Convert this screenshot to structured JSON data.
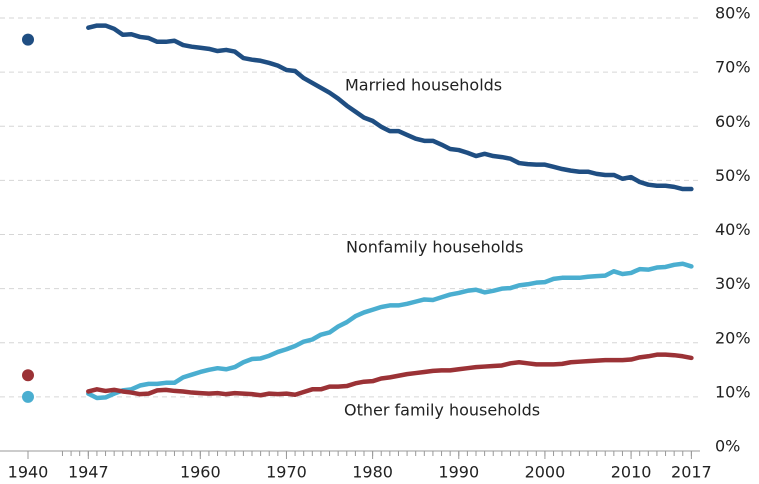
{
  "chart_data": {
    "type": "line",
    "x": [
      1947,
      1948,
      1949,
      1950,
      1951,
      1952,
      1953,
      1954,
      1955,
      1956,
      1957,
      1958,
      1959,
      1960,
      1961,
      1962,
      1963,
      1964,
      1965,
      1966,
      1967,
      1968,
      1969,
      1970,
      1971,
      1972,
      1973,
      1974,
      1975,
      1976,
      1977,
      1978,
      1979,
      1980,
      1981,
      1982,
      1983,
      1984,
      1985,
      1986,
      1987,
      1988,
      1989,
      1990,
      1991,
      1992,
      1993,
      1994,
      1995,
      1996,
      1997,
      1998,
      1999,
      2000,
      2001,
      2002,
      2003,
      2004,
      2005,
      2006,
      2007,
      2008,
      2009,
      2010,
      2011,
      2012,
      2013,
      2014,
      2015,
      2016,
      2017
    ],
    "series": [
      {
        "name": "Married households",
        "color": "#1f4e82",
        "x0": 1940,
        "value0": 76,
        "values": [
          78.2,
          78.6,
          78.6,
          78.0,
          76.9,
          77.0,
          76.5,
          76.3,
          75.6,
          75.6,
          75.8,
          75.0,
          74.7,
          74.5,
          74.3,
          73.9,
          74.1,
          73.8,
          72.6,
          72.3,
          72.1,
          71.7,
          71.2,
          70.4,
          70.2,
          68.9,
          68.0,
          67.1,
          66.2,
          65.1,
          63.8,
          62.7,
          61.6,
          61.0,
          59.9,
          59.1,
          59.1,
          58.4,
          57.7,
          57.3,
          57.3,
          56.6,
          55.8,
          55.6,
          55.1,
          54.5,
          54.9,
          54.5,
          54.3,
          54.0,
          53.2,
          53.0,
          52.9,
          52.9,
          52.5,
          52.1,
          51.8,
          51.6,
          51.6,
          51.2,
          51.0,
          51.0,
          50.3,
          50.6,
          49.7,
          49.2,
          49.0,
          49.0,
          48.8,
          48.4,
          48.4
        ]
      },
      {
        "name": "Nonfamily households",
        "color": "#4aaed0",
        "x0": 1940,
        "value0": 10,
        "values": [
          10.6,
          9.8,
          9.9,
          10.6,
          11.2,
          11.4,
          12.1,
          12.4,
          12.4,
          12.6,
          12.6,
          13.6,
          14.1,
          14.6,
          15.0,
          15.3,
          15.1,
          15.5,
          16.4,
          17.0,
          17.1,
          17.6,
          18.3,
          18.8,
          19.4,
          20.2,
          20.6,
          21.5,
          21.9,
          23.0,
          23.8,
          24.9,
          25.6,
          26.1,
          26.6,
          26.9,
          26.9,
          27.2,
          27.6,
          28.0,
          27.9,
          28.4,
          28.9,
          29.2,
          29.6,
          29.8,
          29.3,
          29.6,
          30.0,
          30.1,
          30.6,
          30.8,
          31.1,
          31.2,
          31.8,
          32.0,
          32.0,
          32.0,
          32.2,
          32.3,
          32.4,
          33.2,
          32.7,
          32.9,
          33.6,
          33.5,
          33.9,
          34.0,
          34.4,
          34.6,
          34.1
        ]
      },
      {
        "name": "Other family households",
        "color": "#9b3236",
        "x0": 1940,
        "value0": 14,
        "values": [
          11.0,
          11.4,
          11.1,
          11.3,
          11.0,
          10.8,
          10.5,
          10.6,
          11.2,
          11.3,
          11.1,
          11.0,
          10.8,
          10.7,
          10.6,
          10.7,
          10.5,
          10.7,
          10.6,
          10.5,
          10.3,
          10.6,
          10.5,
          10.6,
          10.4,
          10.9,
          11.4,
          11.4,
          11.9,
          11.9,
          12.0,
          12.5,
          12.8,
          12.9,
          13.4,
          13.6,
          13.9,
          14.2,
          14.4,
          14.6,
          14.8,
          14.9,
          14.9,
          15.1,
          15.3,
          15.5,
          15.6,
          15.7,
          15.8,
          16.2,
          16.4,
          16.2,
          16.0,
          16.0,
          16.0,
          16.1,
          16.4,
          16.5,
          16.6,
          16.7,
          16.8,
          16.8,
          16.8,
          16.9,
          17.3,
          17.5,
          17.8,
          17.8,
          17.7,
          17.5,
          17.2
        ]
      }
    ],
    "xlim": [
      1936.75,
      2018.0
    ],
    "xticks": [
      1940,
      1947,
      1960,
      1970,
      1980,
      1990,
      2000,
      2010,
      2017
    ],
    "ylim": [
      0,
      80
    ],
    "yticks": [
      {
        "value": 0,
        "label": "0%"
      },
      {
        "value": 10,
        "label": "10%"
      },
      {
        "value": 20,
        "label": "20%"
      },
      {
        "value": 30,
        "label": "30%"
      },
      {
        "value": 40,
        "label": "40%"
      },
      {
        "value": 50,
        "label": "50%"
      },
      {
        "value": 60,
        "label": "60%"
      },
      {
        "value": 70,
        "label": "70%"
      },
      {
        "value": 80,
        "label": "80%"
      }
    ],
    "grid": true
  }
}
